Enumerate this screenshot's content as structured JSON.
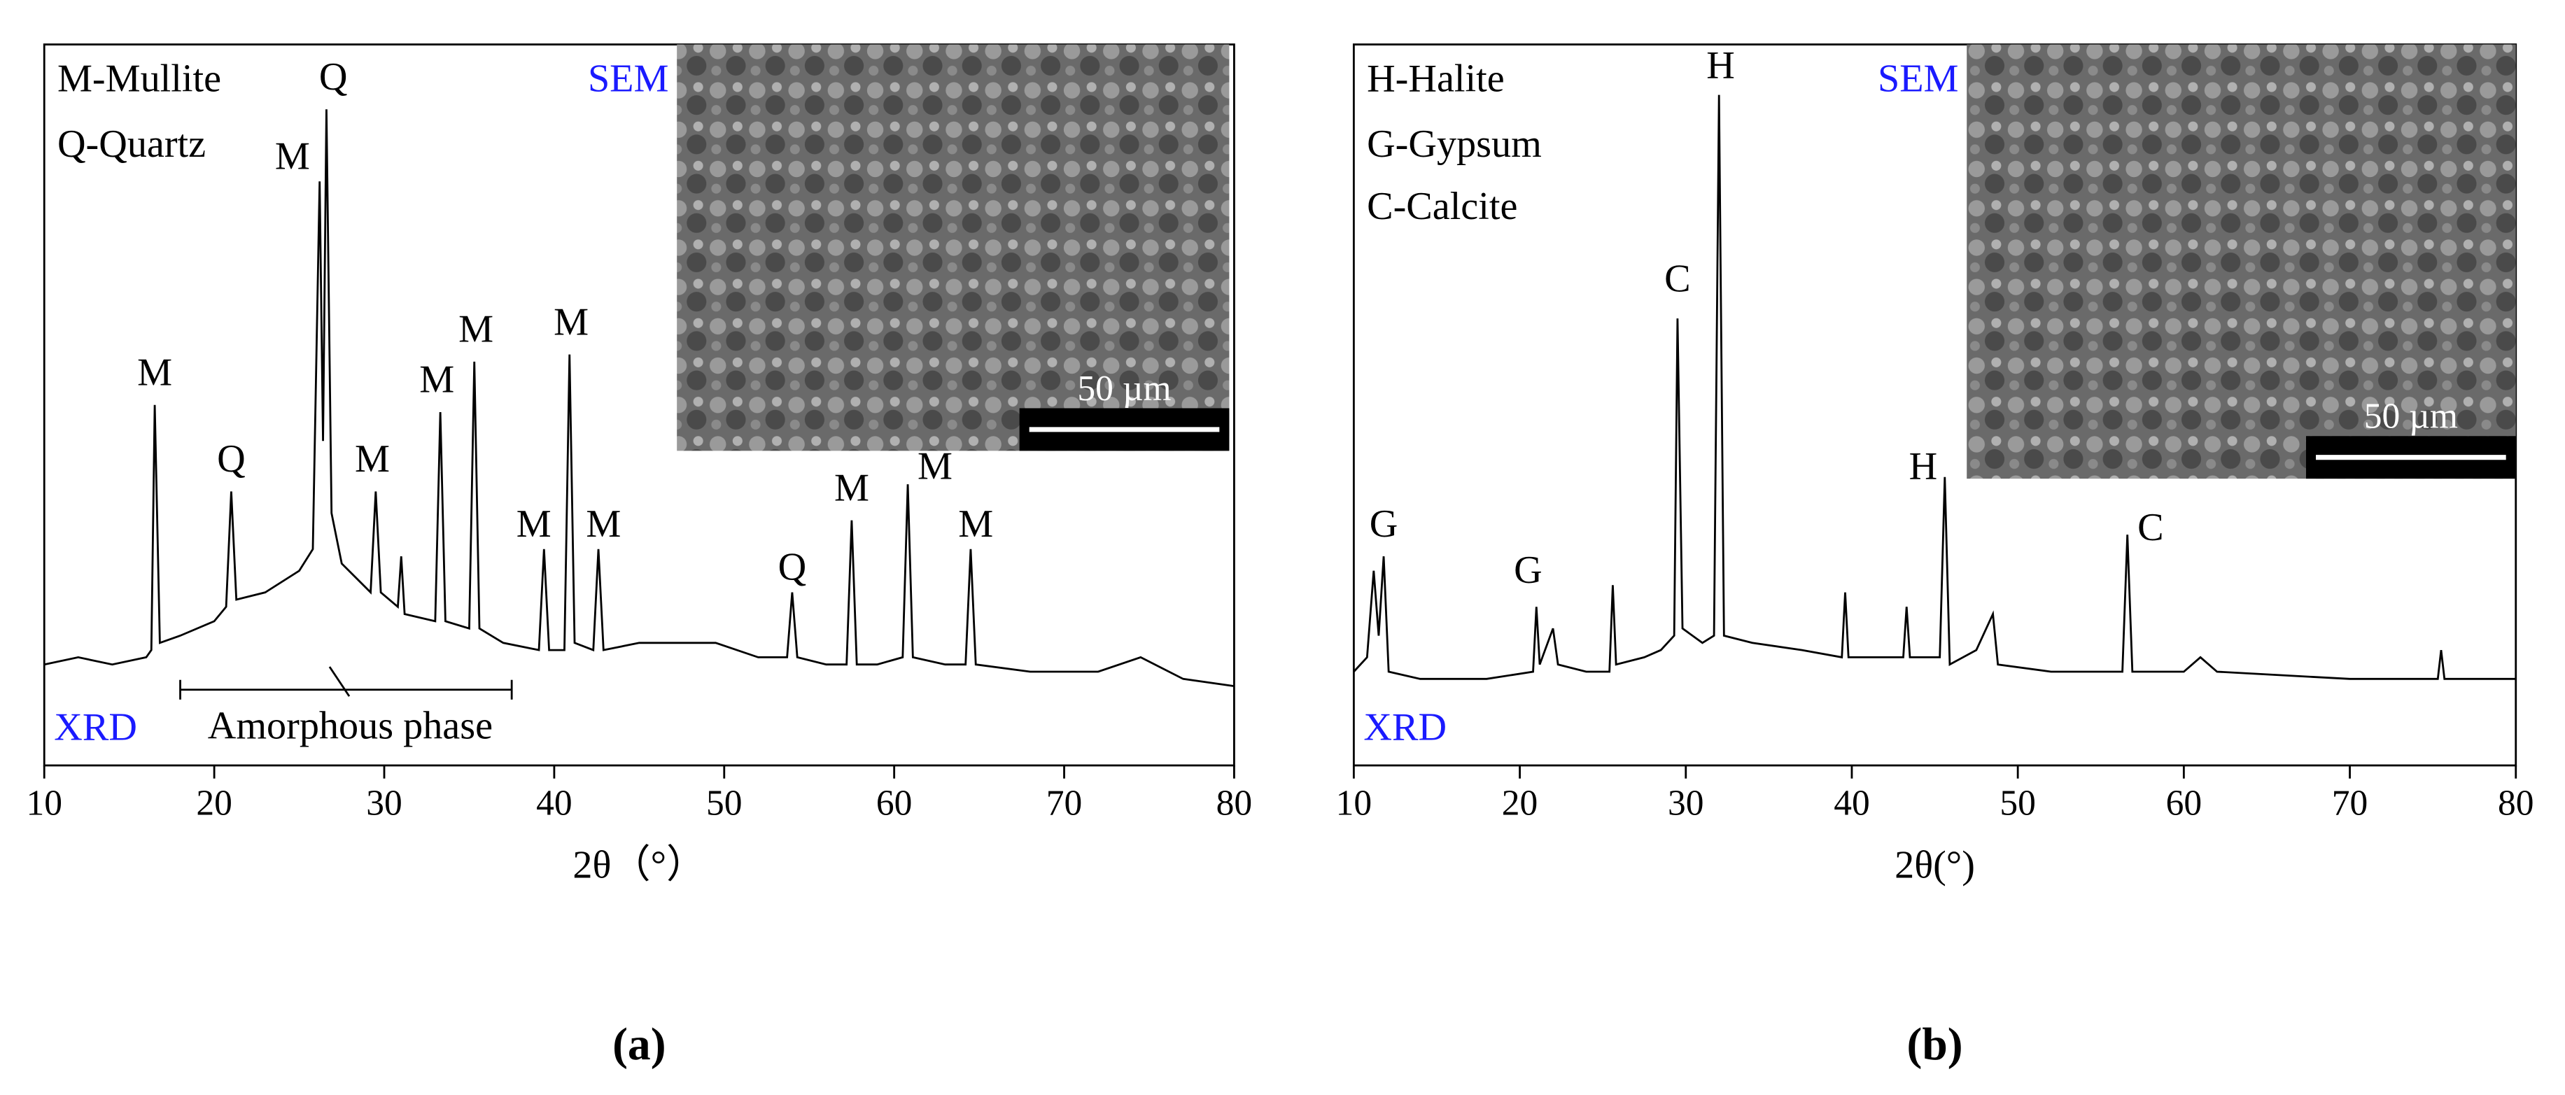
{
  "chart_data": [
    {
      "type": "line",
      "panel_label": "(a)",
      "x_label": "2θ（°）",
      "legend_notes": [
        "M-Mullite",
        "Q-Quartz"
      ],
      "sem_label": "SEM",
      "xrd_label": "XRD",
      "scale_bar": "50 µm",
      "xlim": [
        10,
        80
      ],
      "xticks": [
        10,
        20,
        30,
        40,
        50,
        60,
        70,
        80
      ],
      "ylim": [
        0,
        100
      ],
      "color": "#000000",
      "x": [
        10,
        12,
        14,
        16,
        16.3,
        16.5,
        16.8,
        18,
        20,
        20.7,
        21,
        21.3,
        23,
        25,
        25.8,
        26.2,
        26.4,
        26.6,
        26.9,
        27.5,
        29.2,
        29.5,
        29.8,
        30.8,
        31,
        31.2,
        33,
        33.3,
        33.6,
        35,
        35.3,
        35.6,
        37,
        39.1,
        39.4,
        39.7,
        40.6,
        40.9,
        41.2,
        42.3,
        42.6,
        42.9,
        45,
        49.5,
        52,
        53.7,
        54,
        54.3,
        56,
        57.2,
        57.5,
        57.8,
        59,
        60.5,
        60.8,
        61.1,
        63,
        64.2,
        64.5,
        64.8,
        68,
        72,
        74.5,
        77,
        80
      ],
      "values": [
        14,
        15,
        14,
        15,
        16,
        50,
        17,
        18,
        20,
        22,
        38,
        23,
        24,
        27,
        30,
        81,
        45,
        91,
        35,
        28,
        24,
        38,
        24,
        22,
        29,
        21,
        20,
        49,
        20,
        19,
        56,
        19,
        17,
        16,
        30,
        16,
        16,
        57,
        17,
        16,
        30,
        16,
        17,
        17,
        15,
        15,
        24,
        15,
        14,
        14,
        34,
        14,
        14,
        15,
        39,
        15,
        14,
        14,
        30,
        14,
        13,
        13,
        15,
        12,
        11
      ],
      "annotations": [
        {
          "text": "M",
          "x": 16.5,
          "y": 54
        },
        {
          "text": "Q",
          "x": 21,
          "y": 42
        },
        {
          "text": "M",
          "x": 24.6,
          "y": 84
        },
        {
          "text": "Q",
          "x": 27,
          "y": 95
        },
        {
          "text": "M",
          "x": 29.3,
          "y": 42
        },
        {
          "text": "M",
          "x": 33.1,
          "y": 53
        },
        {
          "text": "M",
          "x": 35.4,
          "y": 60
        },
        {
          "text": "M",
          "x": 38.8,
          "y": 33
        },
        {
          "text": "M",
          "x": 41,
          "y": 61
        },
        {
          "text": "M",
          "x": 42.9,
          "y": 33
        },
        {
          "text": "Q",
          "x": 54,
          "y": 27
        },
        {
          "text": "M",
          "x": 57.5,
          "y": 38
        },
        {
          "text": "M",
          "x": 62.4,
          "y": 41
        },
        {
          "text": "M",
          "x": 64.8,
          "y": 33
        }
      ],
      "span_note": {
        "text": "Amorphous phase",
        "x": 28,
        "y": 5,
        "span": [
          18,
          37.5
        ],
        "span_y": 10.5
      }
    },
    {
      "type": "line",
      "panel_label": "(b)",
      "x_label": "2θ(°)",
      "legend_notes": [
        "H-Halite",
        "G-Gypsum",
        "C-Calcite"
      ],
      "sem_label": "SEM",
      "xrd_label": "XRD",
      "scale_bar": "50 µm",
      "xlim": [
        10,
        80
      ],
      "xticks": [
        10,
        20,
        30,
        40,
        50,
        60,
        70,
        80
      ],
      "ylim": [
        0,
        100
      ],
      "color": "#000000",
      "x": [
        10,
        10.8,
        11.2,
        11.5,
        11.8,
        12.1,
        14,
        18,
        20.8,
        21,
        21.2,
        22,
        22.3,
        24,
        25.4,
        25.6,
        25.8,
        27.5,
        28.5,
        29.3,
        29.5,
        29.8,
        31,
        31.7,
        32,
        32.3,
        34,
        37,
        39.4,
        39.6,
        39.8,
        43.1,
        43.3,
        43.5,
        45.3,
        45.6,
        45.9,
        47.5,
        48.5,
        48.8,
        52,
        56.3,
        56.6,
        56.9,
        60,
        61,
        62,
        70,
        75.3,
        75.5,
        75.7,
        80
      ],
      "values": [
        13,
        15,
        27,
        18,
        29,
        13,
        12,
        12,
        13,
        22,
        14,
        19,
        14,
        13,
        13,
        25,
        14,
        15,
        16,
        18,
        62,
        19,
        17,
        18,
        93,
        18,
        17,
        16,
        15,
        24,
        15,
        15,
        22,
        15,
        15,
        40,
        14,
        16,
        21,
        14,
        13,
        13,
        32,
        13,
        13,
        15,
        13,
        12,
        12,
        16,
        12,
        12
      ],
      "annotations": [
        {
          "text": "G",
          "x": 11.8,
          "y": 33
        },
        {
          "text": "G",
          "x": 20.5,
          "y": 26.6
        },
        {
          "text": "C",
          "x": 29.5,
          "y": 67
        },
        {
          "text": "H",
          "x": 32.1,
          "y": 96.6
        },
        {
          "text": "H",
          "x": 44.3,
          "y": 41
        },
        {
          "text": "C",
          "x": 58,
          "y": 32.5
        }
      ]
    }
  ]
}
